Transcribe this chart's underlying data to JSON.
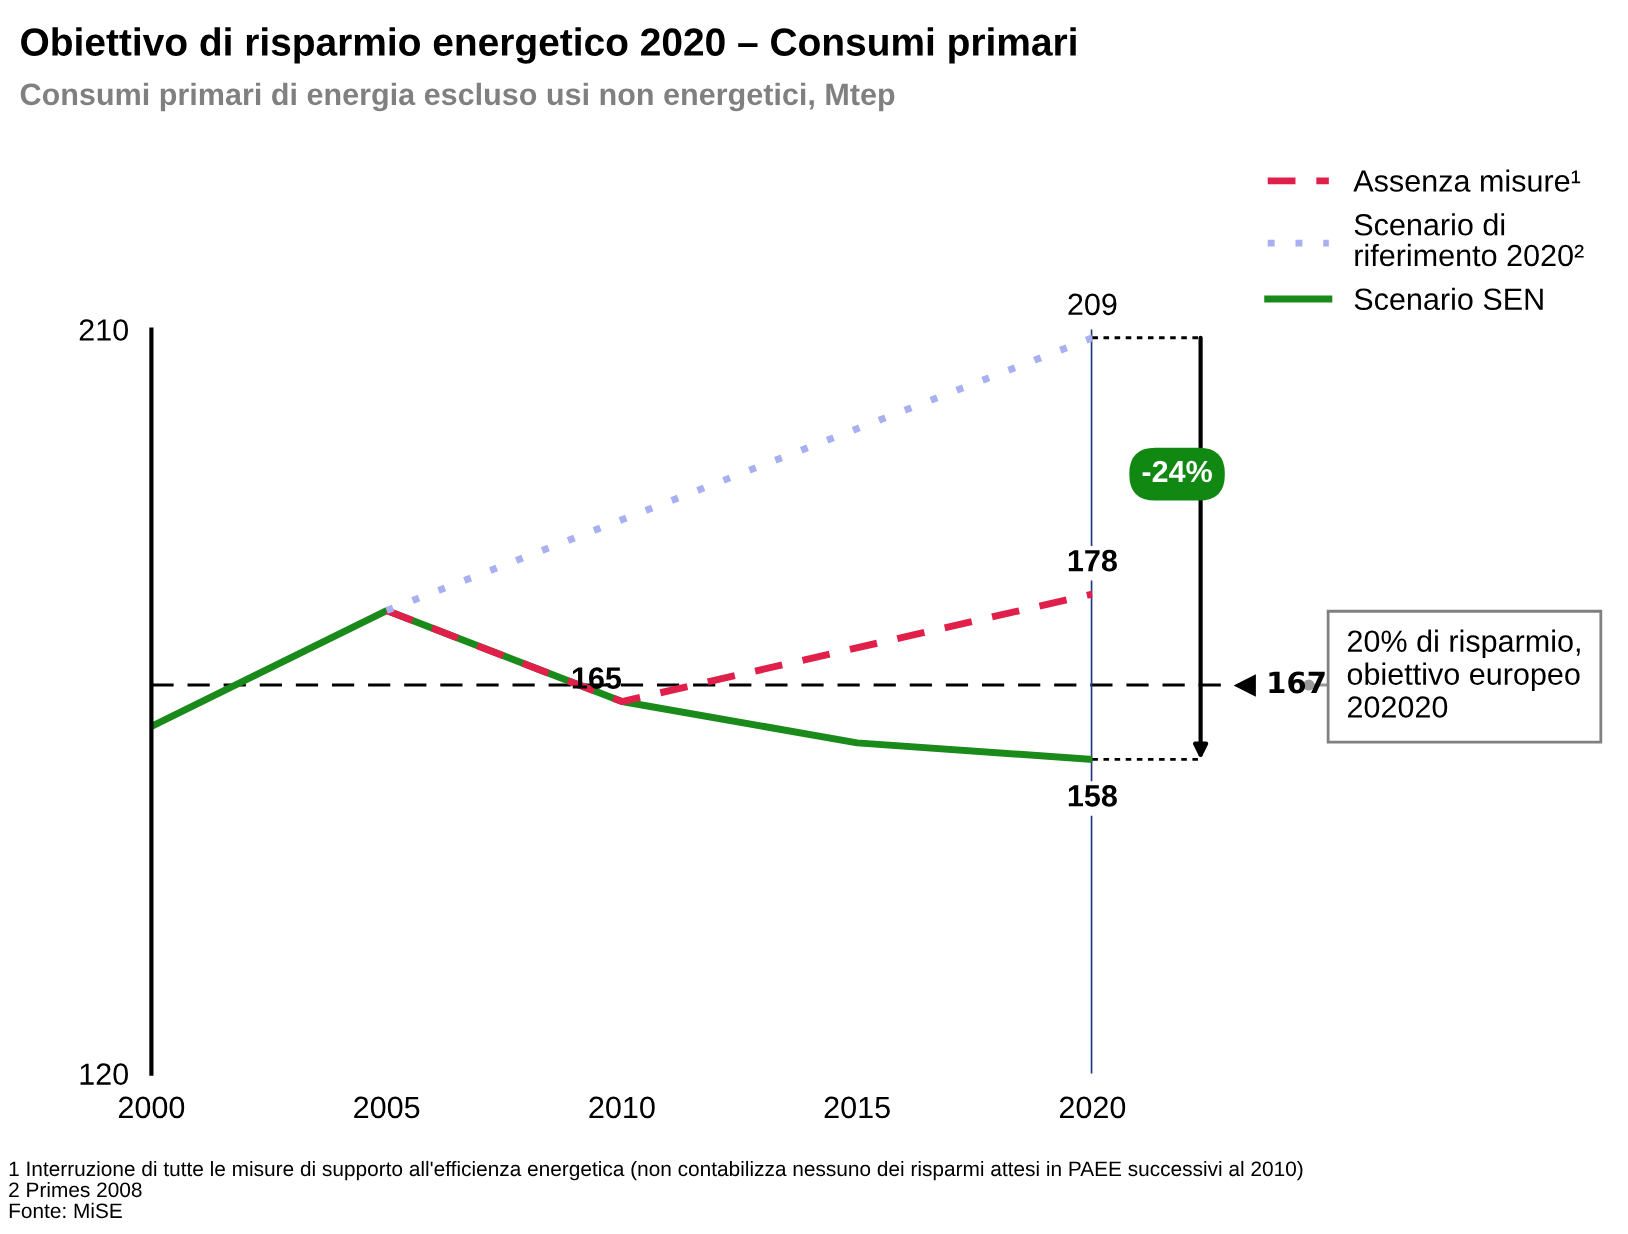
{
  "chart_data": {
    "type": "line",
    "title": "Obiettivo di risparmio energetico 2020 – Consumi primari",
    "subtitle": "Consumi primari di energia escluso usi non energetici, Mtep",
    "x": [
      2000,
      2005,
      2010,
      2015,
      2020
    ],
    "series": [
      {
        "name": "Assenza misure¹",
        "color": "#e0204a",
        "line_style": "dashed",
        "x": [
          2005,
          2010,
          2020
        ],
        "values": [
          176,
          165,
          178
        ],
        "value_labels": [
          null,
          "165",
          "178"
        ]
      },
      {
        "name": "Scenario di\nriferimento 2020²",
        "color": "#a8b0f0",
        "line_style": "dotted",
        "x": [
          2005,
          2020
        ],
        "values": [
          176,
          209
        ],
        "value_labels": [
          null,
          "209"
        ]
      },
      {
        "name": "Scenario SEN",
        "color": "#1a8a1a",
        "line_style": "solid",
        "values": [
          162,
          176,
          165,
          160,
          158
        ],
        "value_labels": [
          null,
          null,
          null,
          null,
          "158"
        ]
      }
    ],
    "xlim": [
      2000,
      2020
    ],
    "xticks": [
      2000,
      2005,
      2010,
      2015,
      2020
    ],
    "ylim": [
      120,
      210
    ],
    "yticks": [
      120,
      210
    ],
    "ref_lines": [
      {
        "axis": "y",
        "value": 167,
        "label": "◀ 167",
        "color": "#000000",
        "line_style": "dashed"
      },
      {
        "axis": "x",
        "value": 2020,
        "label": null,
        "color": "#1f3a80",
        "line_style": "solid"
      }
    ],
    "annotations": [
      "-24%",
      "20% di risparmio, obiettivo europeo 202020",
      "1 Interruzione di tutte le misure di supporto all'efficienza energetica (non contabilizza nessuno dei risparmi attesi in PAEE successivi al 2010)",
      "2 Primes 2008",
      "Fonte: MiSE"
    ],
    "grid": false,
    "legend": "top right"
  }
}
